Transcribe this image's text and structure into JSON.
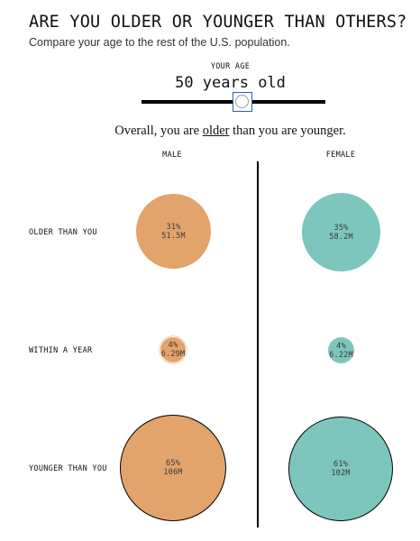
{
  "header": {
    "title": "ARE YOU OLDER OR YOUNGER THAN OTHERS?",
    "subtitle": "Compare your age to the rest of the U.S. population."
  },
  "age_control": {
    "label": "YOUR AGE",
    "value_text": "50 years old",
    "slider_value": 50
  },
  "summary": {
    "prefix": "Overall, you are ",
    "highlight": "older",
    "suffix": " than you are younger."
  },
  "columns": {
    "male": "MALE",
    "female": "FEMALE"
  },
  "rows": {
    "older": {
      "label": "OLDER THAN YOU",
      "male": {
        "pct": "31%",
        "count": "51.5M"
      },
      "female": {
        "pct": "35%",
        "count": "58.2M"
      }
    },
    "within": {
      "label": "WITHIN A YEAR",
      "male": {
        "pct": "4%",
        "count": "6.29M"
      },
      "female": {
        "pct": "4%",
        "count": "6.22M"
      }
    },
    "younger": {
      "label": "YOUNGER THAN YOU",
      "male": {
        "pct": "65%",
        "count": "106M"
      },
      "female": {
        "pct": "61%",
        "count": "102M"
      }
    }
  },
  "colors": {
    "male": "#e2a46a",
    "female": "#7cc6bd",
    "slider_accent": "#2c5fb3"
  }
}
